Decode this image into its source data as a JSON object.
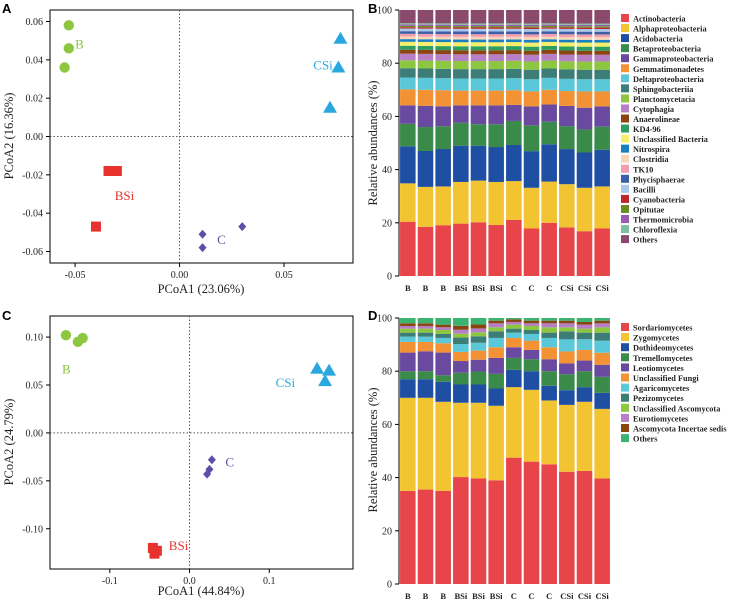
{
  "panels": {
    "A": {
      "letter": "A",
      "xlabel": "PCoA1 (23.06%)",
      "ylabel": "PCoA2 (16.36%)",
      "xticks": [
        "-0.05",
        "0.00",
        "0.05"
      ],
      "yticks": [
        "-0.06",
        "-0.04",
        "-0.02",
        "0.00",
        "0.02",
        "0.04",
        "0.06"
      ]
    },
    "B": {
      "letter": "B",
      "ylabel": "Relative abundances (%)",
      "yticks": [
        "0",
        "20",
        "40",
        "60",
        "80",
        "100"
      ],
      "categories": [
        "B",
        "B",
        "B",
        "BSi",
        "BSi",
        "BSi",
        "C",
        "C",
        "C",
        "CSi",
        "CSi",
        "CSi"
      ]
    },
    "C": {
      "letter": "C",
      "xlabel": "PCoA1 (44.84%)",
      "ylabel": "PCoA2 (24.79%)",
      "xticks": [
        "-0.1",
        "0.0",
        "0.1"
      ],
      "yticks": [
        "-0.10",
        "-0.05",
        "0.00",
        "0.05",
        "0.10"
      ]
    },
    "D": {
      "letter": "D",
      "ylabel": "Relative abundances (%)",
      "yticks": [
        "0",
        "20",
        "40",
        "60",
        "80",
        "100"
      ],
      "categories": [
        "B",
        "B",
        "B",
        "BSi",
        "BSi",
        "BSi",
        "C",
        "C",
        "C",
        "CSi",
        "CSi",
        "CSi"
      ]
    }
  },
  "chart_data": [
    {
      "id": "A",
      "type": "scatter",
      "xlabel": "PCoA1 (23.06%)",
      "ylabel": "PCoA2 (16.36%)",
      "xlim": [
        -0.062,
        0.083
      ],
      "ylim": [
        -0.066,
        0.066
      ],
      "series": [
        {
          "name": "B",
          "color": "#8dc63f",
          "marker": "circle",
          "label_at": [
            -0.05,
            0.046
          ],
          "points": [
            [
              -0.053,
              0.058
            ],
            [
              -0.053,
              0.046
            ],
            [
              -0.055,
              0.036
            ]
          ]
        },
        {
          "name": "CSi",
          "color": "#29a8df",
          "marker": "triangle",
          "label_at": [
            0.064,
            0.035
          ],
          "points": [
            [
              0.077,
              0.051
            ],
            [
              0.076,
              0.036
            ],
            [
              0.072,
              0.015
            ]
          ]
        },
        {
          "name": "BSi",
          "color": "#e8322d",
          "marker": "square",
          "label_at": [
            -0.031,
            -0.033
          ],
          "points": [
            [
              -0.034,
              -0.018
            ],
            [
              -0.03,
              -0.018
            ],
            [
              -0.04,
              -0.047
            ]
          ]
        },
        {
          "name": "C",
          "color": "#5b4fa8",
          "marker": "diamond",
          "label_at": [
            0.018,
            -0.056
          ],
          "points": [
            [
              0.011,
              -0.051
            ],
            [
              0.011,
              -0.058
            ],
            [
              0.03,
              -0.047
            ]
          ]
        }
      ]
    },
    {
      "id": "C",
      "type": "scatter",
      "xlabel": "PCoA1 (44.84%)",
      "ylabel": "PCoA2 (24.79%)",
      "xlim": [
        -0.175,
        0.205
      ],
      "ylim": [
        -0.142,
        0.122
      ],
      "series": [
        {
          "name": "B",
          "color": "#8dc63f",
          "marker": "circle",
          "label_at": [
            -0.16,
            0.062
          ],
          "points": [
            [
              -0.155,
              0.102
            ],
            [
              -0.14,
              0.095
            ],
            [
              -0.134,
              0.099
            ]
          ]
        },
        {
          "name": "CSi",
          "color": "#29a8df",
          "marker": "triangle",
          "label_at": [
            0.108,
            0.048
          ],
          "points": [
            [
              0.16,
              0.067
            ],
            [
              0.175,
              0.065
            ],
            [
              0.17,
              0.054
            ]
          ]
        },
        {
          "name": "BSi",
          "color": "#e8322d",
          "marker": "square",
          "label_at": [
            -0.026,
            -0.122
          ],
          "points": [
            [
              -0.046,
              -0.12
            ],
            [
              -0.041,
              -0.123
            ],
            [
              -0.044,
              -0.126
            ]
          ]
        },
        {
          "name": "C",
          "color": "#5b4fa8",
          "marker": "diamond",
          "label_at": [
            0.045,
            -0.035
          ],
          "points": [
            [
              0.028,
              -0.028
            ],
            [
              0.025,
              -0.038
            ],
            [
              0.022,
              -0.043
            ]
          ]
        }
      ]
    },
    {
      "id": "B",
      "type": "bar",
      "stacked": true,
      "ylabel": "Relative abundances (%)",
      "ylim": [
        0,
        100
      ],
      "categories": [
        "B",
        "B",
        "B",
        "BSi",
        "BSi",
        "BSi",
        "C",
        "C",
        "C",
        "CSi",
        "CSi",
        "CSi"
      ],
      "series": [
        {
          "name": "Actinobacteria",
          "color": "#e8454a",
          "values": [
            20.5,
            18.5,
            19,
            19.5,
            20,
            19,
            21,
            17.5,
            20,
            18,
            16.5,
            17.5
          ]
        },
        {
          "name": "Alphaproteobacteria",
          "color": "#f2c431",
          "values": [
            14.5,
            15,
            14.5,
            15.5,
            15.5,
            16,
            14.5,
            15,
            15.5,
            16,
            16,
            15.5
          ]
        },
        {
          "name": "Acidobacteria",
          "color": "#1f4fa3",
          "values": [
            14,
            13.5,
            14,
            13.5,
            13,
            13,
            13.5,
            13.5,
            14,
            13,
            13,
            13.5
          ]
        },
        {
          "name": "Betaproteobacteria",
          "color": "#3a8a4a",
          "values": [
            8.5,
            9,
            8.5,
            8.5,
            8,
            8.5,
            9,
            9.5,
            8.5,
            8.5,
            8.5,
            8.5
          ]
        },
        {
          "name": "Gammaproteobacteria",
          "color": "#6a4aa0",
          "values": [
            7,
            8,
            7.5,
            6.5,
            7,
            7,
            6,
            7,
            6.5,
            7.5,
            8,
            7.5
          ]
        },
        {
          "name": "Gemmatimonadetes",
          "color": "#f39234",
          "values": [
            6,
            6,
            6,
            5.5,
            5.5,
            5.5,
            5.5,
            5.5,
            5.5,
            5.5,
            6,
            5.5
          ]
        },
        {
          "name": "Deltaproteobacteria",
          "color": "#5ac8d8",
          "values": [
            4.5,
            4.5,
            4.5,
            4.5,
            4.5,
            4.5,
            4.5,
            4.5,
            4.5,
            4.5,
            4.5,
            4.5
          ]
        },
        {
          "name": "Sphingobacteriia",
          "color": "#3c7d78",
          "values": [
            3.5,
            3.5,
            3.5,
            3.5,
            3.5,
            3.5,
            3.5,
            3.5,
            3.5,
            3.5,
            3.5,
            3.5
          ]
        },
        {
          "name": "Planctomycetacia",
          "color": "#8dc63f",
          "values": [
            3,
            3,
            3,
            3,
            3,
            3,
            3,
            3,
            3,
            3,
            3,
            3
          ]
        },
        {
          "name": "Cytophagia",
          "color": "#b77fc5",
          "values": [
            2.5,
            2.5,
            2.5,
            2.5,
            2.5,
            2.5,
            2.5,
            2.5,
            2.5,
            2.5,
            2.5,
            2.5
          ]
        },
        {
          "name": "Anaerolineae",
          "color": "#8b4513",
          "values": [
            1.5,
            1.5,
            1.5,
            1.5,
            1.5,
            1.5,
            1.5,
            1.5,
            1.5,
            1.5,
            1.5,
            1.5
          ]
        },
        {
          "name": "KD4-96",
          "color": "#2e9e60",
          "values": [
            1.5,
            1.5,
            1.5,
            1.5,
            1.5,
            1.5,
            1.5,
            1.5,
            1.5,
            1.5,
            1.5,
            1.5
          ]
        },
        {
          "name": "Unclassified Bacteria",
          "color": "#f6ef6a",
          "values": [
            1.5,
            1.5,
            1.5,
            1.5,
            1.5,
            1.5,
            1.5,
            1.5,
            1.5,
            1.5,
            1.5,
            1.5
          ]
        },
        {
          "name": "Nitrospira",
          "color": "#1a7fbf",
          "values": [
            1,
            1,
            1,
            1,
            1,
            1,
            1,
            1,
            1,
            1,
            1,
            1
          ]
        },
        {
          "name": "Clostridia",
          "color": "#f7d5b5",
          "values": [
            1,
            1,
            1,
            1,
            1,
            1,
            1,
            1,
            1,
            1,
            1,
            1
          ]
        },
        {
          "name": "TK10",
          "color": "#f29db0",
          "values": [
            1,
            1,
            1,
            1,
            1,
            1,
            1,
            1,
            1,
            1,
            1,
            1
          ]
        },
        {
          "name": "Phycisphaerae",
          "color": "#3d5fa8",
          "values": [
            1,
            1,
            1,
            1,
            1,
            1,
            1,
            1,
            1,
            1,
            1,
            1
          ]
        },
        {
          "name": "Bacilli",
          "color": "#a9c7e8",
          "values": [
            1,
            1,
            1,
            1,
            1,
            1,
            1,
            1,
            1,
            1,
            1,
            1
          ]
        },
        {
          "name": "Cyanobacteria",
          "color": "#c0272d",
          "values": [
            0.5,
            0.5,
            0.5,
            0.5,
            0.5,
            0.5,
            0.5,
            0.5,
            0.5,
            0.5,
            0.5,
            0.5
          ]
        },
        {
          "name": "Opitutae",
          "color": "#6b8e23",
          "values": [
            0.5,
            0.5,
            0.5,
            0.5,
            0.5,
            0.5,
            0.5,
            0.5,
            0.5,
            0.5,
            0.5,
            0.5
          ]
        },
        {
          "name": "Thermomicrobia",
          "color": "#9b59b6",
          "values": [
            0.5,
            0.5,
            0.5,
            0.5,
            0.5,
            0.5,
            0.5,
            0.5,
            0.5,
            0.5,
            0.5,
            0.5
          ]
        },
        {
          "name": "Chloroflexia",
          "color": "#7fbf9f",
          "values": [
            0.5,
            0.5,
            0.5,
            0.5,
            0.5,
            0.5,
            0.5,
            0.5,
            0.5,
            0.5,
            0.5,
            0.5
          ]
        },
        {
          "name": "Others",
          "color": "#8a4a6b",
          "values": [
            5,
            5,
            5,
            5,
            5,
            5,
            5,
            5,
            5,
            5,
            5,
            5
          ]
        }
      ]
    },
    {
      "id": "D",
      "type": "bar",
      "stacked": true,
      "ylabel": "Relative abundances (%)",
      "ylim": [
        0,
        100
      ],
      "categories": [
        "B",
        "B",
        "B",
        "BSi",
        "BSi",
        "BSi",
        "C",
        "C",
        "C",
        "CSi",
        "CSi",
        "CSi"
      ],
      "series": [
        {
          "name": "Sordariomycetes",
          "color": "#e8454a",
          "values": [
            35,
            35.5,
            35,
            41,
            40.5,
            39,
            47.5,
            46,
            45,
            42,
            42.5,
            39.5
          ]
        },
        {
          "name": "Zygomycetes",
          "color": "#f2c431",
          "values": [
            35,
            34.5,
            33.5,
            28.5,
            29,
            28,
            26.5,
            27,
            24,
            25,
            26,
            26
          ]
        },
        {
          "name": "Dothideomycetes",
          "color": "#1f4fa3",
          "values": [
            7,
            7,
            7.5,
            7,
            7,
            6.5,
            6.5,
            7,
            5.5,
            5.5,
            5.5,
            6
          ]
        },
        {
          "name": "Tremellomycetes",
          "color": "#3a8a4a",
          "values": [
            3,
            3,
            2.5,
            4.5,
            5,
            5.5,
            4.5,
            4.5,
            5.5,
            6,
            6,
            6
          ]
        },
        {
          "name": "Leotiomycetes",
          "color": "#6a4aa0",
          "values": [
            7,
            7.5,
            8.5,
            4.5,
            4.5,
            6,
            4,
            3.5,
            4.5,
            4,
            4,
            4.5
          ]
        },
        {
          "name": "Unclassified Fungi",
          "color": "#f39234",
          "values": [
            4,
            3.5,
            3.5,
            3.5,
            3.5,
            4,
            3.5,
            3.5,
            4.5,
            4.5,
            4,
            4.5
          ]
        },
        {
          "name": "Agaricomycetes",
          "color": "#5ac8d8",
          "values": [
            2,
            2,
            2,
            3,
            3,
            3.5,
            2,
            2.5,
            3.5,
            4.5,
            4,
            4.5
          ]
        },
        {
          "name": "Pezizomycetes",
          "color": "#3c7d78",
          "values": [
            1.5,
            1.5,
            1.5,
            2.5,
            2.5,
            2.5,
            1.5,
            1.5,
            2,
            3,
            2.5,
            3
          ]
        },
        {
          "name": "Unclassified Ascomycota",
          "color": "#8dc63f",
          "values": [
            1.5,
            1.5,
            1.5,
            1.5,
            1.5,
            1.5,
            1.5,
            1.5,
            2,
            1.5,
            1.5,
            2
          ]
        },
        {
          "name": "Eurotiomycetes",
          "color": "#b77fc5",
          "values": [
            1,
            1,
            1,
            1.5,
            1.5,
            1.5,
            1,
            1,
            1.5,
            1.5,
            1.5,
            1.5
          ]
        },
        {
          "name": "Ascomycota Incertae sedis",
          "color": "#8b4513",
          "values": [
            1,
            1,
            1,
            1.5,
            1.5,
            1,
            1,
            1,
            1,
            1,
            1,
            1
          ]
        },
        {
          "name": "Others",
          "color": "#3cb371",
          "values": [
            2,
            2,
            2.5,
            3,
            2.5,
            1,
            0.5,
            1,
            1,
            1,
            1.5,
            1
          ]
        }
      ]
    }
  ]
}
